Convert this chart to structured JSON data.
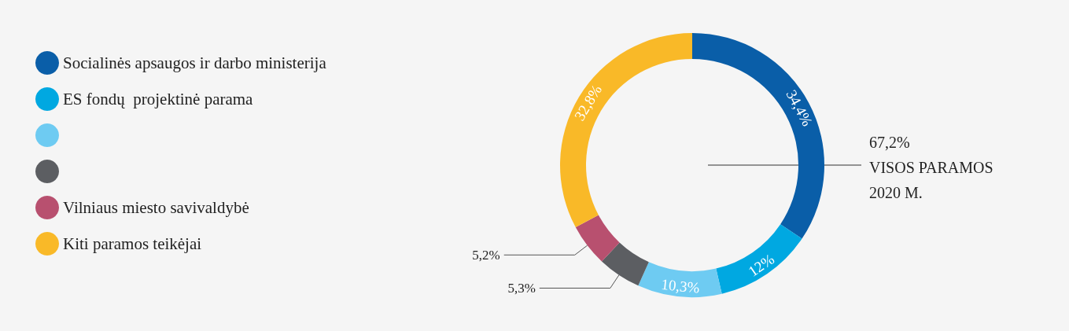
{
  "chart_data": {
    "type": "donut",
    "categories": [
      "Socialinės apsaugos ir darbo ministerija",
      "ES fondų  projektinė parama",
      null,
      null,
      "Vilniaus miesto savivaldybė",
      "Kiti paramos teikėjai"
    ],
    "values": [
      34.4,
      12,
      10.3,
      5.3,
      5.2,
      32.8
    ],
    "colors": [
      "#0a5ea8",
      "#00a8e1",
      "#6ecbf2",
      "#5c5e62",
      "#b8506f",
      "#f9b928"
    ],
    "value_labels": [
      "34,4%",
      "12%",
      "10,3%",
      "5,3%",
      "5,2%",
      "32,8%"
    ],
    "legend": "left",
    "annotations": [
      "67,2%\nVISOS PARAMOS\n2020 M."
    ]
  }
}
